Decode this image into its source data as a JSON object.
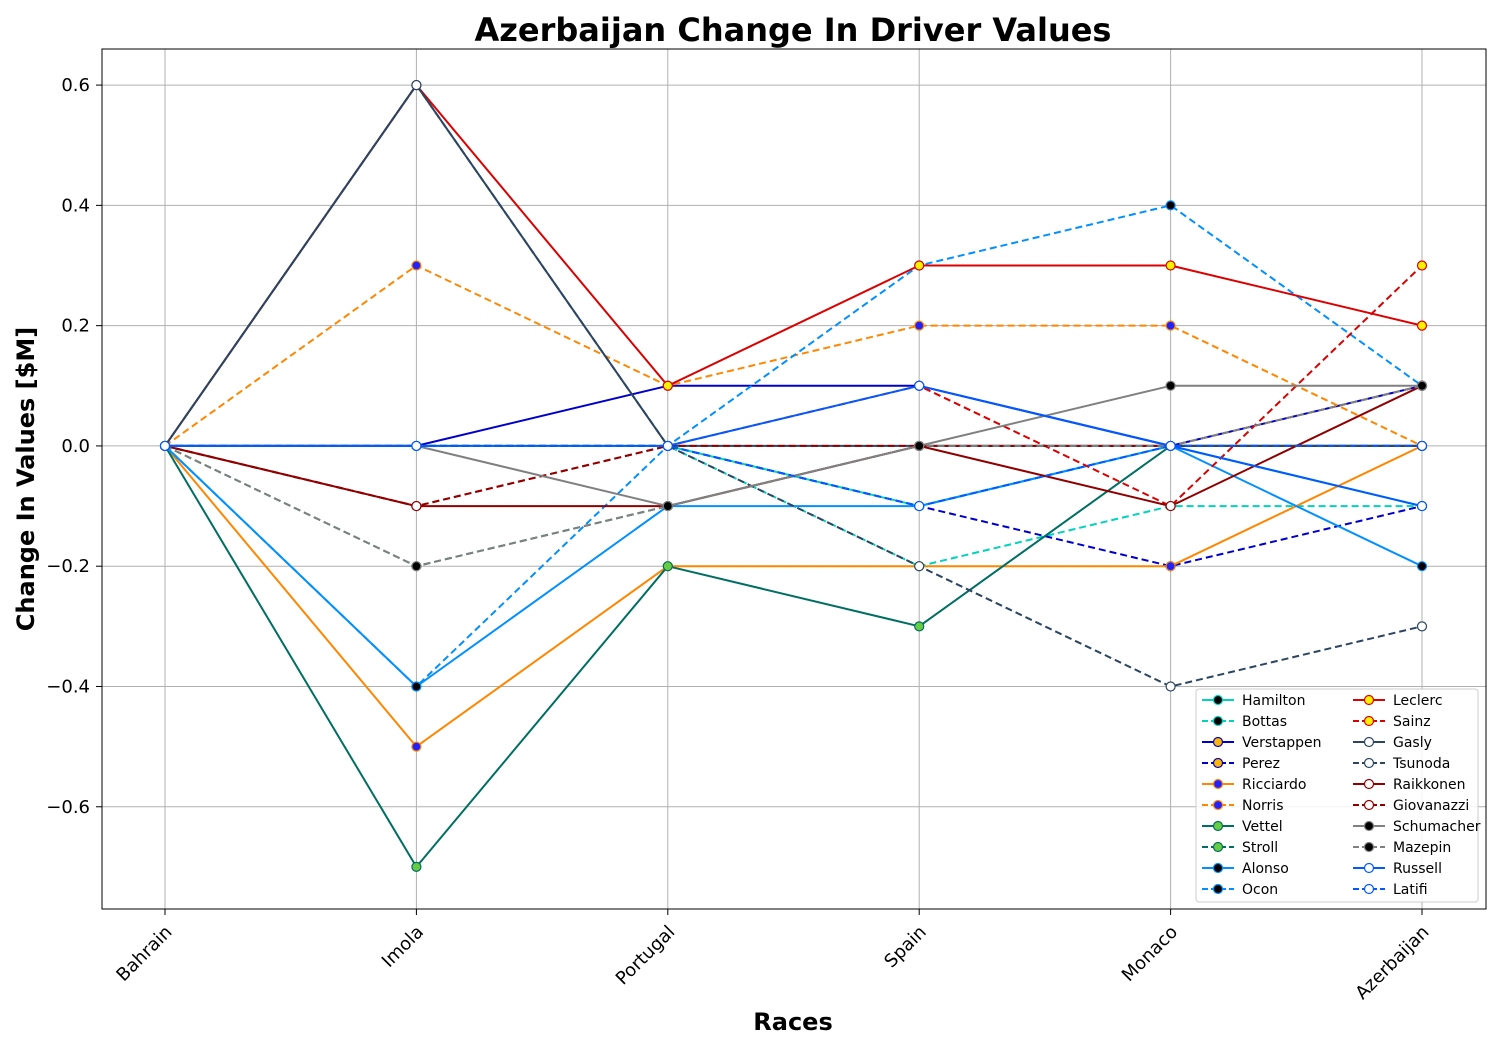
{
  "chart_data": {
    "type": "line",
    "title": "Azerbaijan Change In Driver Values",
    "xlabel": "Races",
    "ylabel": "Change In Values [$M]",
    "categories": [
      "Bahrain",
      "Imola",
      "Portugal",
      "Spain",
      "Monaco",
      "Azerbaijan"
    ],
    "ylim": [
      -0.77,
      0.66
    ],
    "yticks": [
      -0.6,
      -0.4,
      -0.2,
      0.0,
      0.2,
      0.4,
      0.6
    ],
    "ytick_labels": [
      "−0.6",
      "−0.4",
      "−0.2",
      "0.0",
      "0.2",
      "0.4",
      "0.6"
    ],
    "grid": true,
    "legend_position": "lower-right",
    "legend_columns": 2,
    "series": [
      {
        "name": "Hamilton",
        "color": "#00d2be",
        "dash": false,
        "marker_fill": "#000000",
        "marker_edge": "#00d2be",
        "values": [
          0,
          0,
          0,
          -0.1,
          0,
          -0.1
        ]
      },
      {
        "name": "Bottas",
        "color": "#00d2be",
        "dash": true,
        "marker_fill": "#000000",
        "marker_edge": "#00d2be",
        "values": [
          0,
          0,
          0,
          -0.2,
          -0.1,
          -0.1
        ]
      },
      {
        "name": "Verstappen",
        "color": "#0000cc",
        "dash": false,
        "marker_fill": "#ffb800",
        "marker_edge": "#0000cc",
        "values": [
          0,
          0,
          0.1,
          0.1,
          0,
          0.1
        ]
      },
      {
        "name": "Perez",
        "color": "#0000cc",
        "dash": true,
        "marker_fill": "#ffb800",
        "marker_edge": "#0000cc",
        "values": [
          0,
          0,
          0,
          -0.1,
          -0.2,
          -0.1
        ]
      },
      {
        "name": "Ricciardo",
        "color": "#ff8700",
        "dash": false,
        "marker_fill": "#2222ff",
        "marker_edge": "#ff8700",
        "values": [
          0,
          -0.5,
          -0.2,
          -0.2,
          -0.2,
          0
        ]
      },
      {
        "name": "Norris",
        "color": "#ff8700",
        "dash": true,
        "marker_fill": "#2222ff",
        "marker_edge": "#ff8700",
        "values": [
          0,
          0.3,
          0.1,
          0.2,
          0.2,
          0
        ]
      },
      {
        "name": "Vettel",
        "color": "#006f62",
        "dash": false,
        "marker_fill": "#66cc44",
        "marker_edge": "#006f62",
        "values": [
          0,
          -0.7,
          -0.2,
          -0.3,
          0,
          0
        ]
      },
      {
        "name": "Stroll",
        "color": "#006f62",
        "dash": true,
        "marker_fill": "#66cc44",
        "marker_edge": "#006f62",
        "values": [
          0,
          -0.2,
          -0.1,
          0,
          0,
          0
        ]
      },
      {
        "name": "Alonso",
        "color": "#0090ff",
        "dash": false,
        "marker_fill": "#000000",
        "marker_edge": "#0090ff",
        "values": [
          0,
          -0.4,
          -0.1,
          -0.1,
          0,
          -0.2
        ]
      },
      {
        "name": "Ocon",
        "color": "#0090ff",
        "dash": true,
        "marker_fill": "#000000",
        "marker_edge": "#0090ff",
        "values": [
          0,
          -0.4,
          0,
          0.3,
          0.4,
          0.1
        ]
      },
      {
        "name": "Leclerc",
        "color": "#dc0000",
        "dash": false,
        "marker_fill": "#fff200",
        "marker_edge": "#dc0000",
        "values": [
          0,
          0.6,
          0.1,
          0.3,
          0.3,
          0.2
        ]
      },
      {
        "name": "Sainz",
        "color": "#dc0000",
        "dash": true,
        "marker_fill": "#fff200",
        "marker_edge": "#dc0000",
        "values": [
          0,
          -0.1,
          0,
          0.1,
          -0.1,
          0.3
        ]
      },
      {
        "name": "Gasly",
        "color": "#2b4562",
        "dash": false,
        "marker_fill": "#ffffff",
        "marker_edge": "#2b4562",
        "values": [
          0,
          0.6,
          0,
          0,
          0,
          0
        ]
      },
      {
        "name": "Tsunoda",
        "color": "#2b4562",
        "dash": true,
        "marker_fill": "#ffffff",
        "marker_edge": "#2b4562",
        "values": [
          0,
          0.6,
          0,
          -0.2,
          -0.4,
          -0.3
        ]
      },
      {
        "name": "Raikkonen",
        "color": "#900000",
        "dash": false,
        "marker_fill": "#ffffff",
        "marker_edge": "#900000",
        "values": [
          0,
          -0.1,
          -0.1,
          0,
          -0.1,
          0.1
        ]
      },
      {
        "name": "Giovanazzi",
        "color": "#900000",
        "dash": true,
        "marker_fill": "#ffffff",
        "marker_edge": "#900000",
        "values": [
          0,
          -0.1,
          0,
          0,
          0,
          0
        ]
      },
      {
        "name": "Schumacher",
        "color": "#808080",
        "dash": false,
        "marker_fill": "#000000",
        "marker_edge": "#808080",
        "values": [
          0,
          0,
          -0.1,
          0,
          0.1,
          0.1
        ]
      },
      {
        "name": "Mazepin",
        "color": "#808080",
        "dash": true,
        "marker_fill": "#000000",
        "marker_edge": "#808080",
        "values": [
          0,
          -0.2,
          -0.1,
          0,
          0,
          0.1
        ]
      },
      {
        "name": "Russell",
        "color": "#005aff",
        "dash": false,
        "marker_fill": "#ffffff",
        "marker_edge": "#005aff",
        "values": [
          0,
          0,
          0,
          0.1,
          0,
          -0.1
        ]
      },
      {
        "name": "Latifi",
        "color": "#005aff",
        "dash": true,
        "marker_fill": "#ffffff",
        "marker_edge": "#005aff",
        "values": [
          0,
          0,
          0,
          -0.1,
          0,
          0
        ]
      }
    ]
  }
}
